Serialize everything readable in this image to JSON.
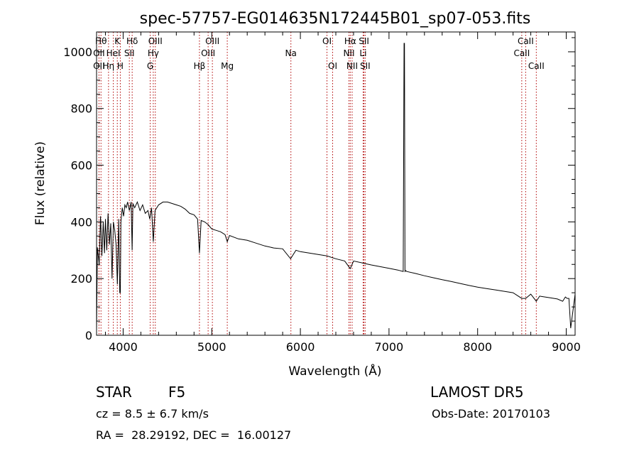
{
  "chart_data": {
    "type": "line",
    "title": "spec-57757-EG014635N172445B01_sp07-053.fits",
    "xlabel": "Wavelength (Å)",
    "ylabel": "Flux (relative)",
    "xlim": [
      3700,
      9100
    ],
    "ylim": [
      0,
      1070
    ],
    "x_ticks": [
      4000,
      5000,
      6000,
      7000,
      8000,
      9000
    ],
    "y_ticks": [
      0,
      200,
      400,
      600,
      800,
      1000
    ],
    "grid": false,
    "series": [
      {
        "x": [
          3700,
          3710,
          3730,
          3745,
          3760,
          3775,
          3790,
          3800,
          3815,
          3830,
          3845,
          3860,
          3875,
          3890,
          3905,
          3920,
          3935,
          3950,
          3962,
          3968,
          3975,
          3990,
          4005,
          4020,
          4035,
          4050,
          4070,
          4090,
          4101,
          4110,
          4130,
          4160,
          4190,
          4220,
          4250,
          4280,
          4300,
          4320,
          4340,
          4360,
          4400,
          4450,
          4500,
          4550,
          4600,
          4650,
          4700,
          4750,
          4800,
          4840,
          4861,
          4880,
          4920,
          4960,
          5000,
          5050,
          5100,
          5150,
          5175,
          5200,
          5300,
          5400,
          5500,
          5600,
          5700,
          5800,
          5890,
          5950,
          6000,
          6100,
          6200,
          6300,
          6400,
          6500,
          6563,
          6600,
          6700,
          6800,
          6900,
          7000,
          7100,
          7160,
          7170,
          7175,
          7180,
          7190,
          7200,
          7300,
          7400,
          7500,
          7600,
          7700,
          7800,
          7900,
          8000,
          8100,
          8200,
          8300,
          8400,
          8498,
          8542,
          8600,
          8662,
          8700,
          8800,
          8900,
          8960,
          8990,
          9010,
          9030,
          9050,
          9100
        ],
        "y": [
          20,
          310,
          250,
          420,
          280,
          400,
          290,
          410,
          300,
          430,
          320,
          395,
          200,
          400,
          370,
          320,
          180,
          410,
          150,
          150,
          400,
          450,
          420,
          460,
          450,
          470,
          440,
          470,
          300,
          465,
          450,
          470,
          440,
          460,
          430,
          440,
          410,
          450,
          330,
          440,
          460,
          470,
          470,
          465,
          460,
          455,
          445,
          430,
          425,
          410,
          290,
          405,
          400,
          390,
          375,
          370,
          365,
          355,
          330,
          352,
          340,
          335,
          325,
          315,
          308,
          305,
          270,
          300,
          295,
          290,
          285,
          280,
          270,
          262,
          235,
          262,
          255,
          248,
          242,
          236,
          230,
          225,
          1030,
          1030,
          225,
          228,
          225,
          218,
          210,
          203,
          196,
          190,
          183,
          176,
          170,
          165,
          160,
          155,
          150,
          130,
          130,
          145,
          120,
          138,
          133,
          128,
          120,
          135,
          130,
          130,
          25,
          145
        ]
      }
    ],
    "spectral_lines": [
      {
        "label": "Hθ",
        "x": 3750,
        "row": 1
      },
      {
        "label": "OII",
        "x": 3727,
        "row": 2
      },
      {
        "label": "OII",
        "x": 3727,
        "row": 3
      },
      {
        "label": "Hη",
        "x": 3835,
        "row": 3
      },
      {
        "label": "HeI",
        "x": 3889,
        "row": 2
      },
      {
        "label": "K",
        "x": 3934,
        "row": 1
      },
      {
        "label": "H",
        "x": 3968,
        "row": 3
      },
      {
        "label": "SII",
        "x": 4070,
        "row": 2
      },
      {
        "label": "Hδ",
        "x": 4102,
        "row": 1
      },
      {
        "label": "OIII",
        "x": 4363,
        "row": 1
      },
      {
        "label": "Hγ",
        "x": 4340,
        "row": 2
      },
      {
        "label": "G",
        "x": 4305,
        "row": 3
      },
      {
        "label": "Hβ",
        "x": 4861,
        "row": 3
      },
      {
        "label": "OIII",
        "x": 5007,
        "row": 1
      },
      {
        "label": "OIII",
        "x": 4959,
        "row": 2
      },
      {
        "label": "Mg",
        "x": 5175,
        "row": 3
      },
      {
        "label": "Na",
        "x": 5893,
        "row": 2
      },
      {
        "label": "OI",
        "x": 6300,
        "row": 1
      },
      {
        "label": "OI",
        "x": 6364,
        "row": 3
      },
      {
        "label": "Hα",
        "x": 6563,
        "row": 1
      },
      {
        "label": "NII",
        "x": 6548,
        "row": 2
      },
      {
        "label": "NII",
        "x": 6584,
        "row": 3
      },
      {
        "label": "SII",
        "x": 6717,
        "row": 1
      },
      {
        "label": "Li",
        "x": 6708,
        "row": 2
      },
      {
        "label": "SII",
        "x": 6731,
        "row": 3
      },
      {
        "label": "CaII",
        "x": 8542,
        "row": 1
      },
      {
        "label": "CaII",
        "x": 8498,
        "row": 2
      },
      {
        "label": "CaII",
        "x": 8662,
        "row": 3
      }
    ]
  },
  "footer": {
    "class_label": "STAR",
    "subclass": "F5",
    "survey": "LAMOST DR5",
    "redshift": "cz = 8.5 ± 6.7 km/s",
    "obs_date": "Obs-Date: 20170103",
    "coords": "RA =  28.29192, DEC =  16.00127"
  },
  "colors": {
    "line": "#000000",
    "marker_line": "#b00000",
    "background": "#ffffff"
  }
}
